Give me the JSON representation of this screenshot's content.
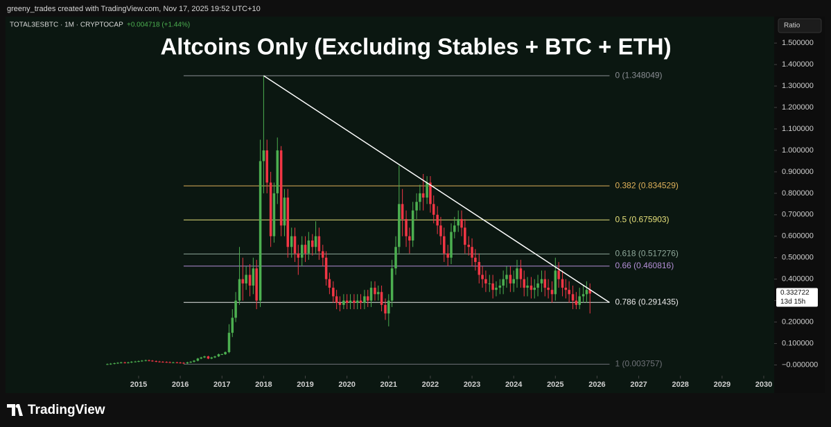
{
  "header": {
    "credit": "greeny_trades created with TradingView.com, Nov 17, 2025 19:52 UTC+10",
    "symbol": "TOTAL3ESBTC · 1M · CRYPTOCAP",
    "change": "+0.004718 (+1.44%)",
    "scale_button": "Ratio"
  },
  "footer": {
    "brand": "TradingView"
  },
  "chart_data": {
    "type": "candlestick",
    "title": "Altcoins Only (Excluding Stables + BTC + ETH)",
    "up_color": "#4caf50",
    "down_color": "#f23645",
    "x": [
      2014.25,
      2014.33,
      2014.42,
      2014.5,
      2014.58,
      2014.67,
      2014.75,
      2014.83,
      2014.92,
      2015,
      2015.08,
      2015.17,
      2015.25,
      2015.33,
      2015.42,
      2015.5,
      2015.58,
      2015.67,
      2015.75,
      2015.83,
      2015.92,
      2016,
      2016.08,
      2016.17,
      2016.25,
      2016.33,
      2016.42,
      2016.5,
      2016.58,
      2016.67,
      2016.75,
      2016.83,
      2016.92,
      2017,
      2017.08,
      2017.17,
      2017.25,
      2017.33,
      2017.42,
      2017.5,
      2017.58,
      2017.67,
      2017.75,
      2017.83,
      2017.92,
      2018,
      2018.08,
      2018.17,
      2018.25,
      2018.33,
      2018.42,
      2018.5,
      2018.58,
      2018.67,
      2018.75,
      2018.83,
      2018.92,
      2019,
      2019.08,
      2019.17,
      2019.25,
      2019.33,
      2019.42,
      2019.5,
      2019.58,
      2019.67,
      2019.75,
      2019.83,
      2019.92,
      2020,
      2020.08,
      2020.17,
      2020.25,
      2020.33,
      2020.42,
      2020.5,
      2020.58,
      2020.67,
      2020.75,
      2020.83,
      2020.92,
      2021,
      2021.08,
      2021.17,
      2021.25,
      2021.33,
      2021.42,
      2021.5,
      2021.58,
      2021.67,
      2021.75,
      2021.83,
      2021.92,
      2022,
      2022.08,
      2022.17,
      2022.25,
      2022.33,
      2022.42,
      2022.5,
      2022.58,
      2022.67,
      2022.75,
      2022.83,
      2022.92,
      2023,
      2023.08,
      2023.17,
      2023.25,
      2023.33,
      2023.42,
      2023.5,
      2023.58,
      2023.67,
      2023.75,
      2023.83,
      2023.92,
      2024,
      2024.08,
      2024.17,
      2024.25,
      2024.33,
      2024.42,
      2024.5,
      2024.58,
      2024.67,
      2024.75,
      2024.83,
      2024.92,
      2025,
      2025.08,
      2025.17,
      2025.25,
      2025.33,
      2025.42,
      2025.5,
      2025.58,
      2025.67,
      2025.75,
      2025.83
    ],
    "open": [
      0.003,
      0.004,
      0.006,
      0.008,
      0.01,
      0.012,
      0.01,
      0.012,
      0.015,
      0.016,
      0.018,
      0.02,
      0.022,
      0.02,
      0.018,
      0.016,
      0.015,
      0.014,
      0.013,
      0.012,
      0.012,
      0.011,
      0.01,
      0.008,
      0.012,
      0.015,
      0.02,
      0.03,
      0.035,
      0.04,
      0.03,
      0.035,
      0.04,
      0.05,
      0.05,
      0.06,
      0.15,
      0.22,
      0.3,
      0.4,
      0.38,
      0.42,
      0.37,
      0.45,
      0.3,
      0.95,
      1.0,
      0.85,
      0.6,
      0.8,
      1.0,
      0.65,
      0.78,
      0.55,
      0.6,
      0.52,
      0.5,
      0.56,
      0.52,
      0.58,
      0.55,
      0.6,
      0.53,
      0.5,
      0.4,
      0.36,
      0.32,
      0.29,
      0.28,
      0.3,
      0.29,
      0.3,
      0.29,
      0.3,
      0.29,
      0.32,
      0.3,
      0.36,
      0.33,
      0.34,
      0.28,
      0.24,
      0.3,
      0.45,
      0.55,
      0.75,
      0.68,
      0.6,
      0.58,
      0.72,
      0.76,
      0.8,
      0.78,
      0.85,
      0.75,
      0.7,
      0.65,
      0.6,
      0.52,
      0.5,
      0.62,
      0.65,
      0.68,
      0.64,
      0.56,
      0.55,
      0.5,
      0.48,
      0.42,
      0.4,
      0.38,
      0.38,
      0.35,
      0.36,
      0.37,
      0.4,
      0.42,
      0.38,
      0.4,
      0.45,
      0.4,
      0.36,
      0.37,
      0.35,
      0.36,
      0.38,
      0.4,
      0.36,
      0.35,
      0.33,
      0.44,
      0.4,
      0.36,
      0.35,
      0.33,
      0.3,
      0.28,
      0.32,
      0.33,
      0.35
    ],
    "high": [
      0.007,
      0.009,
      0.011,
      0.013,
      0.015,
      0.015,
      0.015,
      0.018,
      0.019,
      0.021,
      0.023,
      0.025,
      0.025,
      0.023,
      0.021,
      0.019,
      0.018,
      0.017,
      0.016,
      0.015,
      0.015,
      0.014,
      0.013,
      0.015,
      0.018,
      0.023,
      0.033,
      0.038,
      0.043,
      0.043,
      0.038,
      0.043,
      0.053,
      0.053,
      0.063,
      0.19,
      0.26,
      0.34,
      0.55,
      0.5,
      0.46,
      0.47,
      0.5,
      0.49,
      1.05,
      1.348,
      1.05,
      0.9,
      0.85,
      1.06,
      1.02,
      0.82,
      0.82,
      0.64,
      0.64,
      0.56,
      0.6,
      0.6,
      0.62,
      0.61,
      0.67,
      0.64,
      0.56,
      0.53,
      0.43,
      0.39,
      0.35,
      0.32,
      0.33,
      0.33,
      0.33,
      0.33,
      0.33,
      0.33,
      0.35,
      0.35,
      0.39,
      0.39,
      0.37,
      0.37,
      0.31,
      0.33,
      0.49,
      0.6,
      0.93,
      0.82,
      0.72,
      0.64,
      0.76,
      0.8,
      0.84,
      0.89,
      0.88,
      0.88,
      0.79,
      0.74,
      0.69,
      0.64,
      0.56,
      0.66,
      0.69,
      0.72,
      0.72,
      0.68,
      0.6,
      0.59,
      0.54,
      0.52,
      0.46,
      0.44,
      0.42,
      0.42,
      0.39,
      0.4,
      0.44,
      0.46,
      0.46,
      0.44,
      0.49,
      0.49,
      0.44,
      0.41,
      0.41,
      0.4,
      0.42,
      0.44,
      0.44,
      0.4,
      0.39,
      0.5,
      0.48,
      0.44,
      0.4,
      0.39,
      0.37,
      0.34,
      0.36,
      0.37,
      0.39,
      0.38
    ],
    "low": [
      0,
      0.001,
      0.003,
      0.005,
      0.007,
      0.007,
      0.007,
      0.009,
      0.012,
      0.013,
      0.015,
      0.017,
      0.017,
      0.015,
      0.013,
      0.012,
      0.011,
      0.01,
      0.009,
      0.009,
      0.008,
      0.007,
      0.005,
      0.005,
      0.009,
      0.012,
      0.017,
      0.027,
      0.032,
      0.027,
      0.027,
      0.032,
      0.037,
      0.047,
      0.047,
      0.055,
      0.13,
      0.2,
      0.28,
      0.3,
      0.35,
      0.32,
      0.33,
      0.26,
      0.27,
      0.8,
      0.8,
      0.55,
      0.57,
      0.75,
      0.6,
      0.6,
      0.5,
      0.5,
      0.48,
      0.42,
      0.46,
      0.48,
      0.49,
      0.51,
      0.52,
      0.49,
      0.46,
      0.37,
      0.33,
      0.29,
      0.26,
      0.25,
      0.26,
      0.26,
      0.26,
      0.26,
      0.26,
      0.26,
      0.26,
      0.27,
      0.27,
      0.3,
      0.3,
      0.25,
      0.21,
      0.18,
      0.27,
      0.42,
      0.52,
      0.6,
      0.55,
      0.52,
      0.55,
      0.68,
      0.72,
      0.72,
      0.75,
      0.71,
      0.66,
      0.61,
      0.56,
      0.48,
      0.46,
      0.47,
      0.59,
      0.62,
      0.6,
      0.52,
      0.51,
      0.46,
      0.44,
      0.38,
      0.36,
      0.34,
      0.34,
      0.31,
      0.32,
      0.33,
      0.33,
      0.36,
      0.34,
      0.34,
      0.36,
      0.36,
      0.32,
      0.32,
      0.31,
      0.31,
      0.32,
      0.34,
      0.32,
      0.31,
      0.29,
      0.3,
      0.36,
      0.32,
      0.31,
      0.29,
      0.26,
      0.26,
      0.26,
      0.29,
      0.29,
      0.24
    ],
    "close": [
      0.004,
      0.006,
      0.008,
      0.01,
      0.012,
      0.01,
      0.012,
      0.015,
      0.016,
      0.018,
      0.02,
      0.022,
      0.02,
      0.018,
      0.016,
      0.015,
      0.014,
      0.013,
      0.012,
      0.012,
      0.011,
      0.01,
      0.008,
      0.012,
      0.015,
      0.02,
      0.03,
      0.035,
      0.04,
      0.03,
      0.035,
      0.04,
      0.05,
      0.05,
      0.06,
      0.15,
      0.22,
      0.3,
      0.4,
      0.38,
      0.42,
      0.37,
      0.45,
      0.3,
      0.95,
      1.0,
      0.85,
      0.6,
      0.8,
      1.0,
      0.65,
      0.78,
      0.55,
      0.6,
      0.52,
      0.5,
      0.56,
      0.52,
      0.58,
      0.55,
      0.6,
      0.53,
      0.5,
      0.4,
      0.36,
      0.32,
      0.29,
      0.28,
      0.3,
      0.29,
      0.3,
      0.29,
      0.3,
      0.29,
      0.32,
      0.3,
      0.36,
      0.33,
      0.34,
      0.28,
      0.24,
      0.3,
      0.45,
      0.55,
      0.75,
      0.68,
      0.6,
      0.58,
      0.72,
      0.76,
      0.8,
      0.78,
      0.85,
      0.75,
      0.7,
      0.65,
      0.6,
      0.52,
      0.5,
      0.62,
      0.65,
      0.68,
      0.64,
      0.56,
      0.55,
      0.5,
      0.48,
      0.42,
      0.4,
      0.38,
      0.38,
      0.35,
      0.36,
      0.37,
      0.4,
      0.42,
      0.38,
      0.4,
      0.45,
      0.4,
      0.36,
      0.37,
      0.35,
      0.36,
      0.38,
      0.4,
      0.36,
      0.35,
      0.33,
      0.44,
      0.4,
      0.36,
      0.35,
      0.33,
      0.3,
      0.28,
      0.32,
      0.33,
      0.35,
      0.333
    ],
    "xlim": [
      2011.84,
      2030.25
    ],
    "xticks": [
      2015,
      2016,
      2017,
      2018,
      2019,
      2020,
      2021,
      2022,
      2023,
      2024,
      2025,
      2026,
      2027,
      2028,
      2029,
      2030
    ],
    "ylim": [
      -0.05,
      1.62
    ],
    "yticks": [
      {
        "value": 1.5,
        "label": "1.500000"
      },
      {
        "value": 1.4,
        "label": "1.400000"
      },
      {
        "value": 1.3,
        "label": "1.300000"
      },
      {
        "value": 1.2,
        "label": "1.200000"
      },
      {
        "value": 1.1,
        "label": "1.100000"
      },
      {
        "value": 1.0,
        "label": "1.000000"
      },
      {
        "value": 0.9,
        "label": "0.900000"
      },
      {
        "value": 0.8,
        "label": "0.800000"
      },
      {
        "value": 0.7,
        "label": "0.700000"
      },
      {
        "value": 0.6,
        "label": "0.600000"
      },
      {
        "value": 0.5,
        "label": "0.500000"
      },
      {
        "value": 0.4,
        "label": "0.400000"
      },
      {
        "value": 0.3,
        "label": "0.300000"
      },
      {
        "value": 0.2,
        "label": "0.200000"
      },
      {
        "value": 0.1,
        "label": "0.100000"
      },
      {
        "value": 0,
        "label": "−0.000000"
      }
    ],
    "fib_x": [
      2016.08,
      2026.3
    ],
    "fib_levels": [
      {
        "value": 1.348049,
        "label": "0 (1.348049)",
        "color": "#8a8d93"
      },
      {
        "value": 0.834529,
        "label": "0.382 (0.834529)",
        "color": "#e0b25a"
      },
      {
        "value": 0.675903,
        "label": "0.5 (0.675903)",
        "color": "#e6e07a"
      },
      {
        "value": 0.517276,
        "label": "0.618 (0.517276)",
        "color": "#8fa89a"
      },
      {
        "value": 0.460816,
        "label": "0.66 (0.460816)",
        "color": "#b48fd8"
      },
      {
        "value": 0.291435,
        "label": "0.786 (0.291435)",
        "color": "#e8e8e8"
      },
      {
        "value": 0.003757,
        "label": "1 (0.003757)",
        "color": "#6f7278"
      }
    ],
    "trendline": {
      "x": [
        2018.0,
        2026.3
      ],
      "y": [
        1.348,
        0.291
      ],
      "color": "#ffffff"
    },
    "last_price": 0.332722,
    "countdown": "13d 15h"
  }
}
